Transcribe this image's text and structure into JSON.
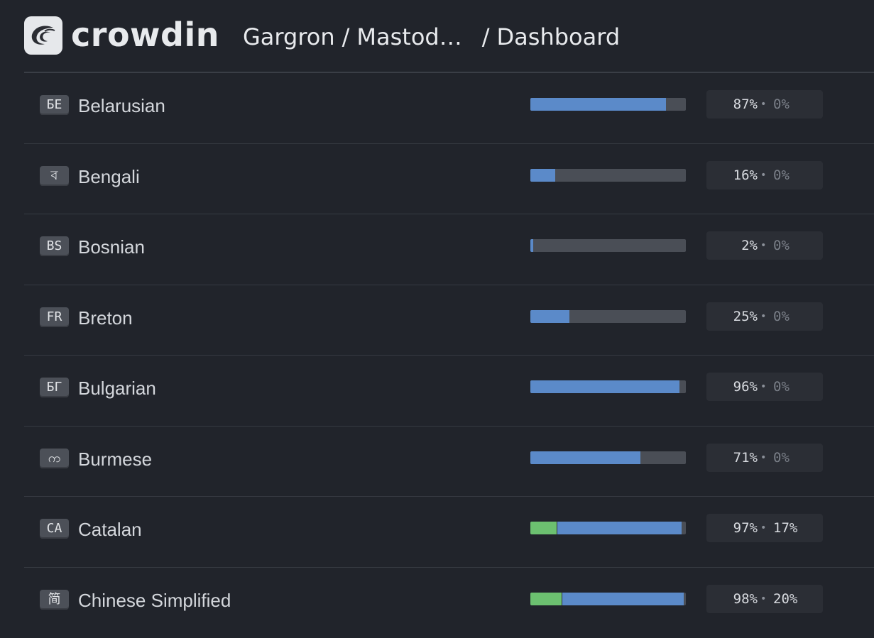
{
  "header": {
    "logo_text": "crowdin",
    "breadcrumb_owner": "Gargron",
    "breadcrumb_project": "Mastod…",
    "breadcrumb_page": "Dashboard",
    "separator": "/"
  },
  "colors": {
    "background": "#21242b",
    "translated_bar": "#5b8ac9",
    "approved_bar": "#6cc070",
    "bar_track": "#4a4e56"
  },
  "languages": [
    {
      "code": "БЕ",
      "name": "Belarusian",
      "translated_pct": 87,
      "approved_pct": 0,
      "translated_label": "87%",
      "approved_label": "0%"
    },
    {
      "code": "ব",
      "name": "Bengali",
      "translated_pct": 16,
      "approved_pct": 0,
      "translated_label": "16%",
      "approved_label": "0%"
    },
    {
      "code": "BS",
      "name": "Bosnian",
      "translated_pct": 2,
      "approved_pct": 0,
      "translated_label": "2%",
      "approved_label": "0%"
    },
    {
      "code": "FR",
      "name": "Breton",
      "translated_pct": 25,
      "approved_pct": 0,
      "translated_label": "25%",
      "approved_label": "0%"
    },
    {
      "code": "БГ",
      "name": "Bulgarian",
      "translated_pct": 96,
      "approved_pct": 0,
      "translated_label": "96%",
      "approved_label": "0%"
    },
    {
      "code": "က",
      "name": "Burmese",
      "translated_pct": 71,
      "approved_pct": 0,
      "translated_label": "71%",
      "approved_label": "0%"
    },
    {
      "code": "CA",
      "name": "Catalan",
      "translated_pct": 97,
      "approved_pct": 17,
      "translated_label": "97%",
      "approved_label": "17%"
    },
    {
      "code": "简",
      "name": "Chinese Simplified",
      "translated_pct": 98,
      "approved_pct": 20,
      "translated_label": "98%",
      "approved_label": "20%"
    }
  ]
}
